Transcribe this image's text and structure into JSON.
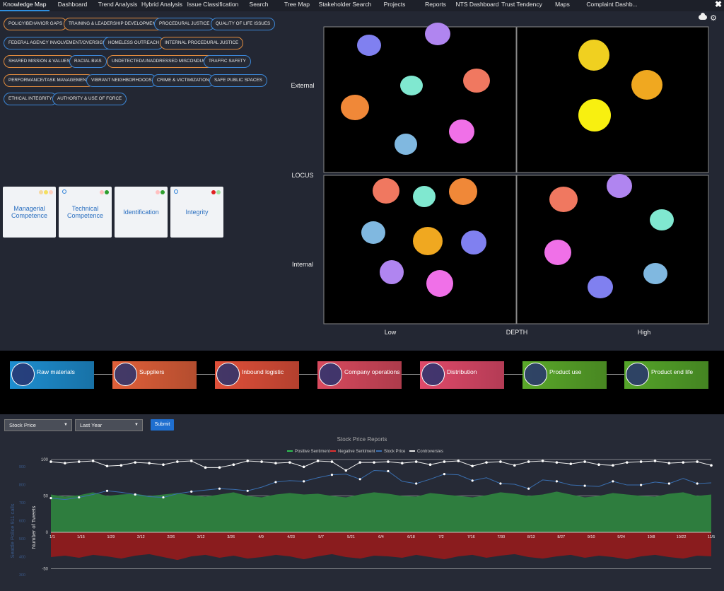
{
  "nav": {
    "tabs": [
      "Knowledge Map",
      "Dashboard",
      "Trend Analysis",
      "Hybrid Analysis",
      "Issue Classification",
      "Search",
      "Tree Map",
      "Stakeholder Search",
      "Projects",
      "Reports",
      "NTS Dashboard",
      "Trust Tendency",
      "Maps",
      "Complaint Dashb..."
    ],
    "active": "Knowledge Map"
  },
  "tags": [
    {
      "label": "POLICY/BEHAVIOR GAPS",
      "color": "orange"
    },
    {
      "label": "TRAINING & LEADERSHIP DEVELOPMENT",
      "color": "orange"
    },
    {
      "label": "PROCEDURAL JUSTICE",
      "color": "blue"
    },
    {
      "label": "QUALITY OF LIFE ISSUES",
      "color": "blue"
    },
    {
      "label": "FEDERAL AGENCY INVOLVEMENT/OVERSIGHT",
      "color": "blue"
    },
    {
      "label": "HOMELESS OUTREACH",
      "color": "blue"
    },
    {
      "label": "INTERNAL PROCEDURAL JUSTICE",
      "color": "orange"
    },
    {
      "label": "SHARED MISSION & VALUES",
      "color": "orange"
    },
    {
      "label": "RACIAL BIAS",
      "color": "blue"
    },
    {
      "label": "UNDETECTED/UNADDRESSED MISCONDUCT",
      "color": "orange"
    },
    {
      "label": "TRAFFIC SAFETY",
      "color": "blue"
    },
    {
      "label": "PERFORMANCE/TASK MANAGEMENT",
      "color": "orange"
    },
    {
      "label": "VIBRANT NEIGHBORHOODS",
      "color": "blue"
    },
    {
      "label": "CRIME & VICTIMIZATION",
      "color": "blue"
    },
    {
      "label": "SAFE PUBLIC SPACES",
      "color": "blue"
    },
    {
      "label": "ETHICAL INTEGRITY",
      "color": "blue"
    },
    {
      "label": "AUTHORITY & USE OF FORCE",
      "color": "blue"
    }
  ],
  "cards": [
    {
      "label": "Managerial Competence",
      "dots": [
        "#f5d7a0",
        "#f3e060",
        "#ffd0c0"
      ]
    },
    {
      "label": "Technical Competence",
      "dots": [
        "#ffc0c0",
        "#2e9e2e"
      ]
    },
    {
      "label": "Identification",
      "dots": [
        "#ffc0c0",
        "#2e9e2e"
      ]
    },
    {
      "label": "Integrity",
      "dots": [
        "#e02020",
        "#a0e0a0"
      ]
    }
  ],
  "matrix": {
    "y_label": "LOCUS",
    "x_label": "DEPTH",
    "y_ticks": [
      "External",
      "Internal"
    ],
    "x_ticks": [
      "Low",
      "High"
    ]
  },
  "chain": [
    {
      "label": "Raw materials",
      "color": "#1e8ed0",
      "icon": "raw-materials-icon"
    },
    {
      "label": "Suppliers",
      "color": "#e0603a",
      "icon": "suppliers-icon"
    },
    {
      "label": "Inbound logistic",
      "color": "#e0503a",
      "icon": "inbound-logistic-icon"
    },
    {
      "label": "Company operations",
      "color": "#d84a5e",
      "icon": "company-operations-icon"
    },
    {
      "label": "Distribution",
      "color": "#e04a6a",
      "icon": "distribution-icon"
    },
    {
      "label": "Product use",
      "color": "#5aa82a",
      "icon": "product-use-icon"
    },
    {
      "label": "Product end life",
      "color": "#55a52a",
      "icon": "product-end-life-icon"
    }
  ],
  "controls": {
    "metric": "Stock Price",
    "period": "Last Year",
    "submit": "Submit"
  },
  "chart_data": {
    "type": "area",
    "title": "Stock Price Reports",
    "legend": [
      "Positive Sentiment",
      "Negative Sentiment",
      "Stock Price",
      "Controversies"
    ],
    "legend_colors": [
      "#2ec050",
      "#e03030",
      "#3a6fb0",
      "#e8e8e8"
    ],
    "x_ticks": [
      "1/1",
      "1/15",
      "1/29",
      "2/12",
      "2/26",
      "3/12",
      "3/26",
      "4/9",
      "4/23",
      "5/7",
      "5/21",
      "6/4",
      "6/18",
      "7/2",
      "7/16",
      "7/30",
      "8/13",
      "8/27",
      "9/10",
      "9/24",
      "10/8",
      "10/22",
      "11/5"
    ],
    "ylabel": "Number of Tweets",
    "ylabel2": "Seattle Police 911 calls",
    "y_ticks": [
      100,
      50,
      0,
      -50
    ],
    "y2_ticks": [
      900,
      800,
      700,
      600,
      500,
      400,
      300,
      200
    ],
    "ylim": [
      -70,
      105
    ],
    "positive": [
      52,
      49,
      51,
      55,
      50,
      52,
      53,
      50,
      52,
      54,
      51,
      49,
      52,
      55,
      50,
      48,
      52,
      54,
      52,
      53,
      50,
      48,
      52,
      55,
      53,
      50,
      49,
      54,
      52,
      50,
      48,
      51,
      55,
      53,
      50,
      52,
      56,
      52,
      48,
      50,
      54,
      52,
      50,
      49,
      53,
      55,
      50,
      52
    ],
    "negative": [
      -34,
      -32,
      -35,
      -31,
      -33,
      -36,
      -32,
      -30,
      -34,
      -38,
      -33,
      -31,
      -35,
      -32,
      -36,
      -34,
      -31,
      -33,
      -37,
      -33,
      -30,
      -34,
      -36,
      -32,
      -33,
      -35,
      -31,
      -34,
      -37,
      -33,
      -31,
      -35,
      -32,
      -30,
      -34,
      -36,
      -33,
      -31,
      -35,
      -32,
      -34,
      -37,
      -33,
      -31,
      -34,
      -36,
      -32,
      -33
    ],
    "stock": [
      47,
      45,
      48,
      52,
      57,
      55,
      52,
      49,
      48,
      53,
      56,
      58,
      60,
      59,
      57,
      62,
      69,
      71,
      70,
      75,
      79,
      80,
      73,
      85,
      84,
      70,
      67,
      73,
      80,
      79,
      71,
      75,
      67,
      66,
      60,
      72,
      70,
      65,
      64,
      63,
      70,
      65,
      65,
      69,
      67,
      74,
      67,
      68
    ],
    "controversies": [
      97,
      95,
      97,
      98,
      91,
      92,
      96,
      95,
      93,
      97,
      98,
      89,
      89,
      93,
      98,
      97,
      95,
      96,
      90,
      98,
      97,
      85,
      96,
      96,
      97,
      95,
      97,
      93,
      97,
      98,
      91,
      96,
      97,
      92,
      97,
      98,
      96,
      94,
      97,
      93,
      92,
      96,
      97,
      98,
      95,
      96,
      97,
      92
    ]
  }
}
